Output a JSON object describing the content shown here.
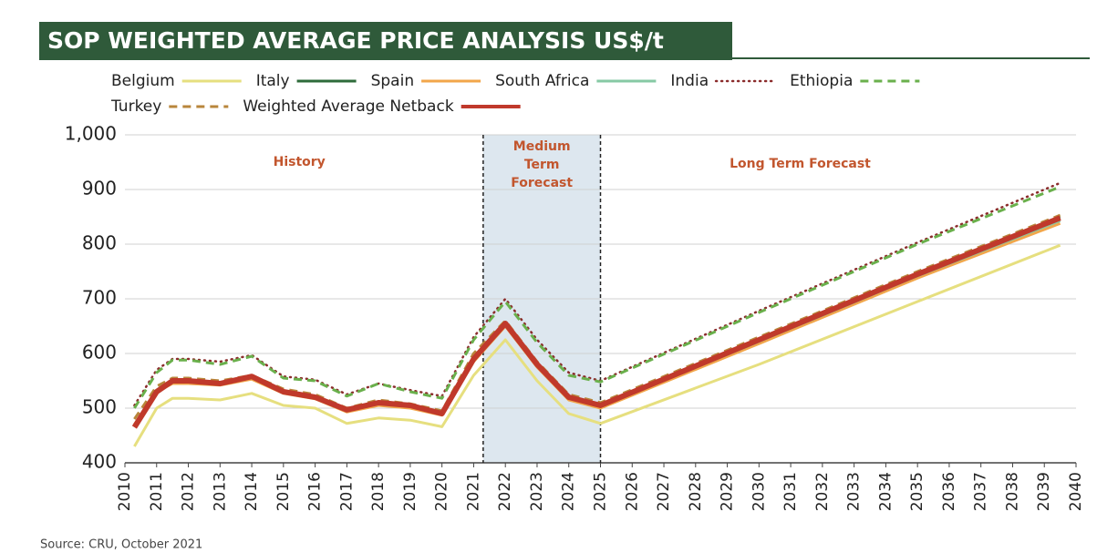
{
  "chart_data": {
    "type": "line",
    "title": "SOP WEIGHTED AVERAGE PRICE ANALYSIS US$/t",
    "source": "Source: CRU, October 2021",
    "annotations": {
      "history": "History",
      "medium_term": [
        "Medium",
        "Term",
        "Forecast"
      ],
      "long_term": "Long Term Forecast"
    },
    "medium_term_range": [
      2021.3,
      2025
    ],
    "x": [
      2010.3,
      2011,
      2011.5,
      2012,
      2013,
      2014,
      2015,
      2016,
      2017,
      2018,
      2019,
      2020,
      2021,
      2022,
      2023,
      2024,
      2025,
      2030,
      2035,
      2039.5
    ],
    "xlim": [
      2010,
      2040
    ],
    "xticks": [
      2010,
      2011,
      2012,
      2013,
      2014,
      2015,
      2016,
      2017,
      2018,
      2019,
      2020,
      2021,
      2022,
      2023,
      2024,
      2025,
      2026,
      2027,
      2028,
      2029,
      2030,
      2031,
      2032,
      2033,
      2034,
      2035,
      2036,
      2037,
      2038,
      2039,
      2040
    ],
    "ylim": [
      400,
      1000
    ],
    "yticks": [
      400,
      500,
      600,
      700,
      800,
      900,
      {
        "value": 1000,
        "label": "1,000"
      }
    ],
    "grid": true,
    "series": [
      {
        "name": "Belgium",
        "color": "#e6df7f",
        "style": "solid",
        "linewidth": 3,
        "values": [
          430,
          500,
          518,
          518,
          515,
          527,
          505,
          500,
          472,
          482,
          478,
          466,
          560,
          625,
          550,
          490,
          472,
          580,
          695,
          798
        ]
      },
      {
        "name": "Italy",
        "color": "#2e6b3a",
        "style": "solid",
        "linewidth": 3,
        "values": [
          468,
          533,
          552,
          552,
          547,
          560,
          532,
          522,
          499,
          512,
          507,
          492,
          592,
          657,
          582,
          522,
          507,
          627,
          747,
          850
        ]
      },
      {
        "name": "Spain",
        "color": "#f2a64a",
        "style": "solid",
        "linewidth": 3,
        "values": [
          470,
          530,
          545,
          545,
          542,
          553,
          527,
          517,
          493,
          505,
          500,
          487,
          585,
          650,
          575,
          515,
          500,
          618,
          738,
          838
        ]
      },
      {
        "name": "South Africa",
        "color": "#86c9a4",
        "style": "solid",
        "linewidth": 3,
        "values": [
          466,
          528,
          548,
          548,
          544,
          556,
          529,
          519,
          496,
          508,
          503,
          489,
          588,
          652,
          578,
          518,
          503,
          622,
          742,
          843
        ]
      },
      {
        "name": "India",
        "color": "#8b2c2c",
        "style": "dotted",
        "linewidth": 2.5,
        "values": [
          505,
          570,
          590,
          590,
          585,
          597,
          558,
          552,
          525,
          545,
          533,
          522,
          630,
          700,
          625,
          565,
          550,
          678,
          803,
          912
        ]
      },
      {
        "name": "Ethiopia",
        "color": "#6ab04c",
        "style": "dashed",
        "linewidth": 3,
        "values": [
          500,
          565,
          588,
          588,
          580,
          595,
          555,
          550,
          522,
          545,
          530,
          518,
          625,
          695,
          620,
          560,
          548,
          675,
          800,
          905
        ]
      },
      {
        "name": "Turkey",
        "color": "#b8863b",
        "style": "dashed",
        "linewidth": 3,
        "values": [
          480,
          540,
          555,
          555,
          550,
          560,
          535,
          525,
          500,
          515,
          508,
          495,
          600,
          660,
          585,
          525,
          510,
          630,
          750,
          853
        ]
      },
      {
        "name": "Weighted Average Netback",
        "color": "#c0392b",
        "style": "solid",
        "linewidth": 6,
        "values": [
          465,
          530,
          550,
          550,
          545,
          558,
          530,
          520,
          497,
          510,
          505,
          490,
          590,
          655,
          580,
          520,
          505,
          625,
          745,
          848
        ]
      }
    ]
  }
}
